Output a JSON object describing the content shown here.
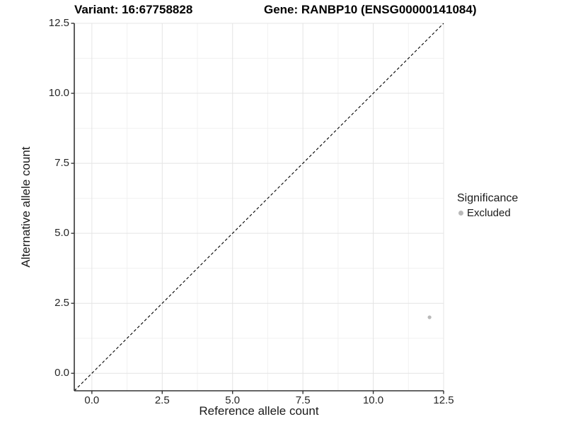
{
  "titles": {
    "variant": "Variant: 16:67758828",
    "gene": "Gene: RANBP10 (ENSG00000141084)"
  },
  "chart_data": {
    "type": "scatter",
    "xlabel": "Reference allele count",
    "ylabel": "Alternative allele count",
    "xlim": [
      -0.625,
      12.5
    ],
    "ylim": [
      -0.625,
      12.5
    ],
    "x_ticks": [
      0,
      2.5,
      5,
      7.5,
      10,
      12.5
    ],
    "x_tick_labels": [
      "0.0",
      "2.5",
      "5.0",
      "7.5",
      "10.0",
      "12.5"
    ],
    "y_ticks": [
      0,
      2.5,
      5,
      7.5,
      10,
      12.5
    ],
    "y_tick_labels": [
      "0.0",
      "2.5",
      "5.0",
      "7.5",
      "10.0",
      "12.5"
    ],
    "grid": "major and minor, light gray on white",
    "series": [
      {
        "name": "Excluded",
        "points": [
          {
            "x": 12,
            "y": 2
          }
        ]
      }
    ],
    "identity_line": {
      "style": "dashed",
      "from_xy": [
        -0.625,
        -0.625
      ],
      "to_xy": [
        12.5,
        12.5
      ]
    },
    "legend": {
      "title": "Significance",
      "position": "right",
      "items": [
        {
          "label": "Excluded",
          "color": "#b9b9b9"
        }
      ]
    },
    "colors": {
      "point": "#b9b9b9",
      "grid_major": "#e4e4e4",
      "grid_minor": "#f1f1f1",
      "axis_line": "#333333",
      "dashed_line": "#000000"
    }
  }
}
